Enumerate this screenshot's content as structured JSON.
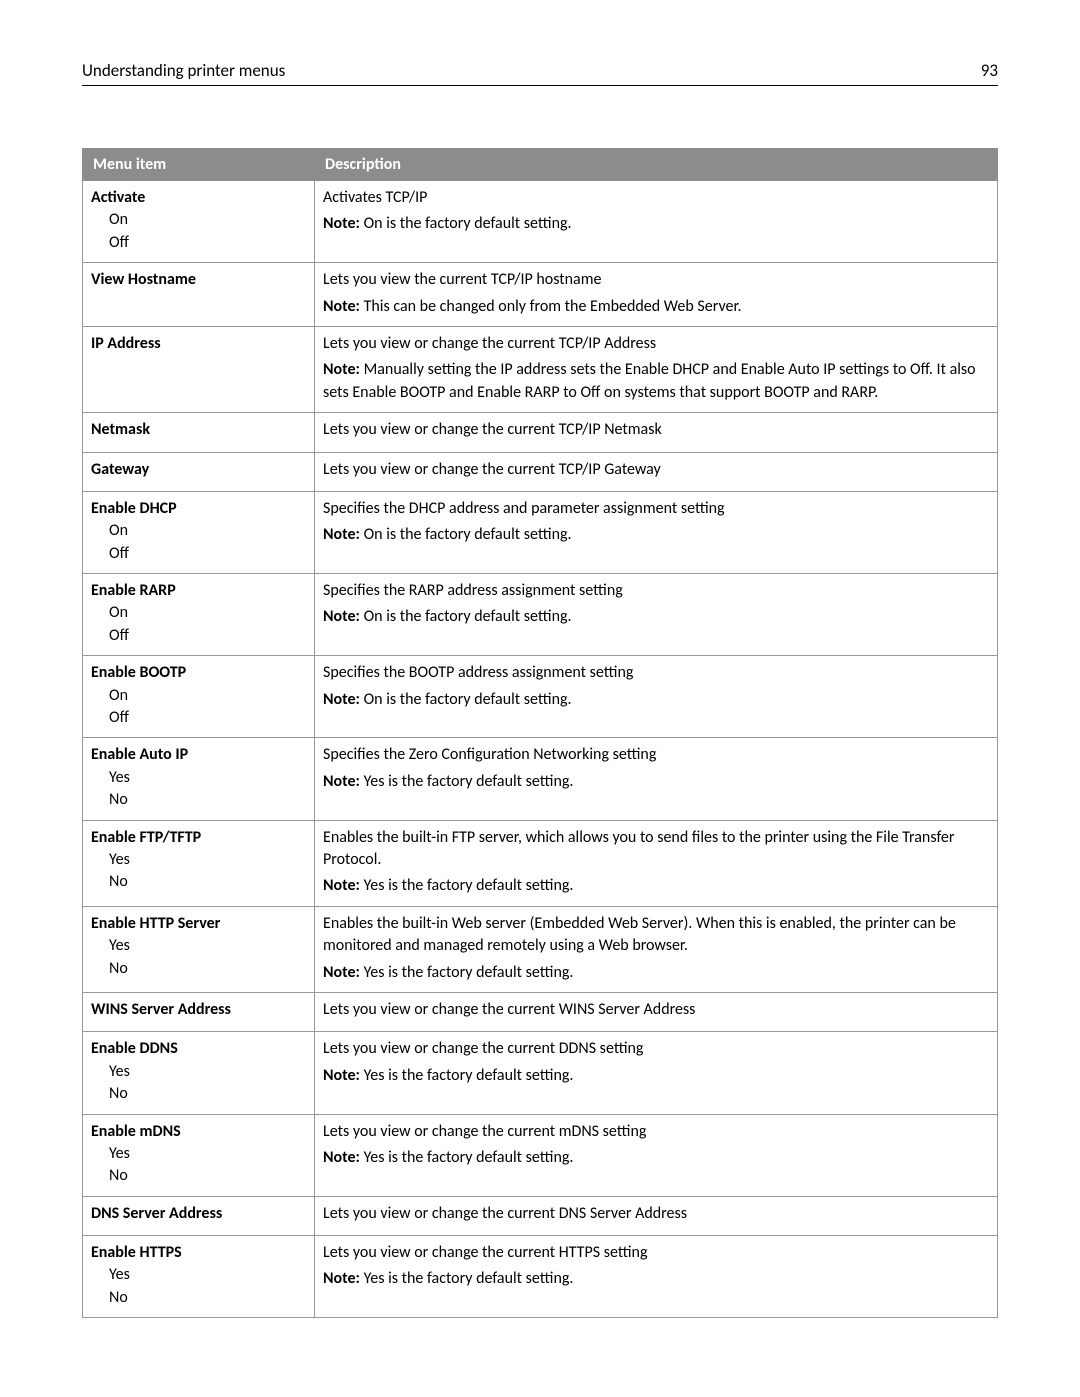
{
  "header": {
    "title": "Understanding printer menus",
    "page": "93"
  },
  "columns": {
    "menu": "Menu item",
    "desc": "Description"
  },
  "noteLabel": "Note:",
  "rows": [
    {
      "title": "Activate",
      "opts": [
        "On",
        "Off"
      ],
      "desc": "Activates TCP/IP",
      "note": " On is the factory default setting."
    },
    {
      "title": "View Hostname",
      "opts": [],
      "desc": "Lets you view the current TCP/IP hostname",
      "note": " This can be changed only from the Embedded Web Server."
    },
    {
      "title": "IP Address",
      "opts": [],
      "desc": "Lets you view or change the current TCP/IP Address",
      "note": " Manually setting the IP address sets the Enable DHCP and Enable Auto IP settings to Off. It also sets Enable BOOTP and Enable RARP to Off on systems that support BOOTP and RARP."
    },
    {
      "title": "Netmask",
      "opts": [],
      "desc": "Lets you view or change the current TCP/IP Netmask",
      "note": ""
    },
    {
      "title": "Gateway",
      "opts": [],
      "desc": "Lets you view or change the current TCP/IP Gateway",
      "note": ""
    },
    {
      "title": "Enable DHCP",
      "opts": [
        "On",
        "Off"
      ],
      "desc": "Specifies the DHCP address and parameter assignment setting",
      "note": " On is the factory default setting."
    },
    {
      "title": "Enable RARP",
      "opts": [
        "On",
        "Off"
      ],
      "desc": "Specifies the RARP address assignment setting",
      "note": " On is the factory default setting."
    },
    {
      "title": "Enable BOOTP",
      "opts": [
        "On",
        "Off"
      ],
      "desc": "Specifies the BOOTP address assignment setting",
      "note": " On is the factory default setting."
    },
    {
      "title": "Enable Auto IP",
      "opts": [
        "Yes",
        "No"
      ],
      "desc": "Specifies the Zero Configuration Networking setting",
      "note": " Yes is the factory default setting."
    },
    {
      "title": "Enable FTP/TFTP",
      "opts": [
        "Yes",
        "No"
      ],
      "desc": "Enables the built-in FTP server, which allows you to send files to the printer using the File Transfer Protocol.",
      "note": " Yes is the factory default setting."
    },
    {
      "title": "Enable HTTP Server",
      "opts": [
        "Yes",
        "No"
      ],
      "desc": "Enables the built-in Web server (Embedded Web Server). When this is enabled, the printer can be monitored and managed remotely using a Web browser.",
      "note": " Yes is the factory default setting."
    },
    {
      "title": "WINS Server Address",
      "opts": [],
      "desc": "Lets you view or change the current WINS Server Address",
      "note": ""
    },
    {
      "title": "Enable DDNS",
      "opts": [
        "Yes",
        "No"
      ],
      "desc": "Lets you view or change the current DDNS setting",
      "note": " Yes is the factory default setting."
    },
    {
      "title": "Enable mDNS",
      "opts": [
        "Yes",
        "No"
      ],
      "desc": "Lets you view or change the current mDNS setting",
      "note": " Yes is the factory default setting."
    },
    {
      "title": "DNS Server Address",
      "opts": [],
      "desc": "Lets you view or change the current DNS Server Address",
      "note": ""
    },
    {
      "title": "Enable HTTPS",
      "opts": [
        "Yes",
        "No"
      ],
      "desc": "Lets you view or change the current HTTPS setting",
      "note": " Yes is the factory default setting."
    }
  ]
}
